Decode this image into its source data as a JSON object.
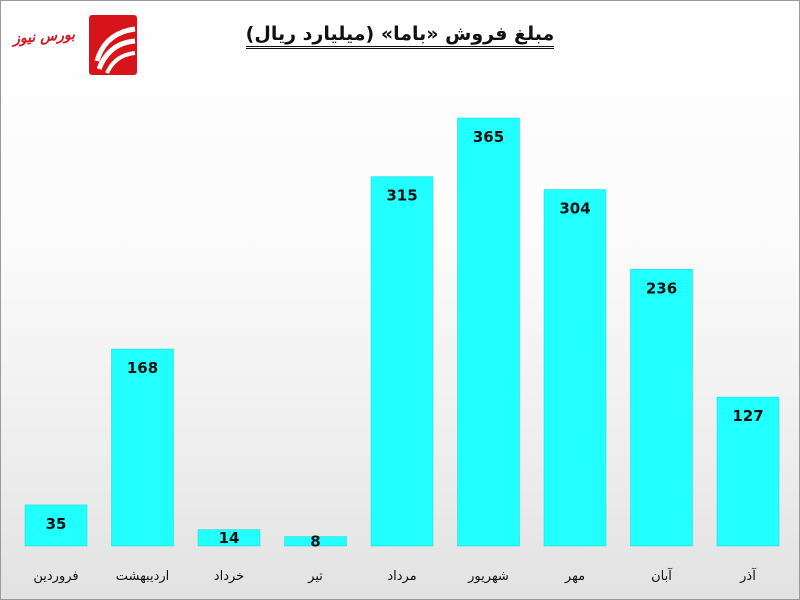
{
  "logo": {
    "text": "بورس نیوز",
    "color": "#d7141a",
    "icon": "bourse-news-logo"
  },
  "colors": {
    "bar": "#22ffff",
    "bar_edge": "#16d6d6",
    "background_top": "#ffffff",
    "background_bottom": "#e2e2e2"
  },
  "chart_data": {
    "type": "bar",
    "title": "مبلغ فروش «باما» (میلیارد ریال)",
    "categories": [
      "فروردین",
      "اردیبهشت",
      "خرداد",
      "تیر",
      "مرداد",
      "شهریور",
      "مهر",
      "آبان",
      "آذر"
    ],
    "values": [
      35,
      168,
      14,
      8,
      315,
      365,
      304,
      236,
      127
    ],
    "data_labels": [
      "35",
      "168",
      "14",
      "8",
      "315",
      "365",
      "304",
      "236",
      "127"
    ],
    "xlabel": "",
    "ylabel": "",
    "ylim": [
      0,
      365
    ],
    "grid": false,
    "legend": "none",
    "y_axis_visible": false
  }
}
